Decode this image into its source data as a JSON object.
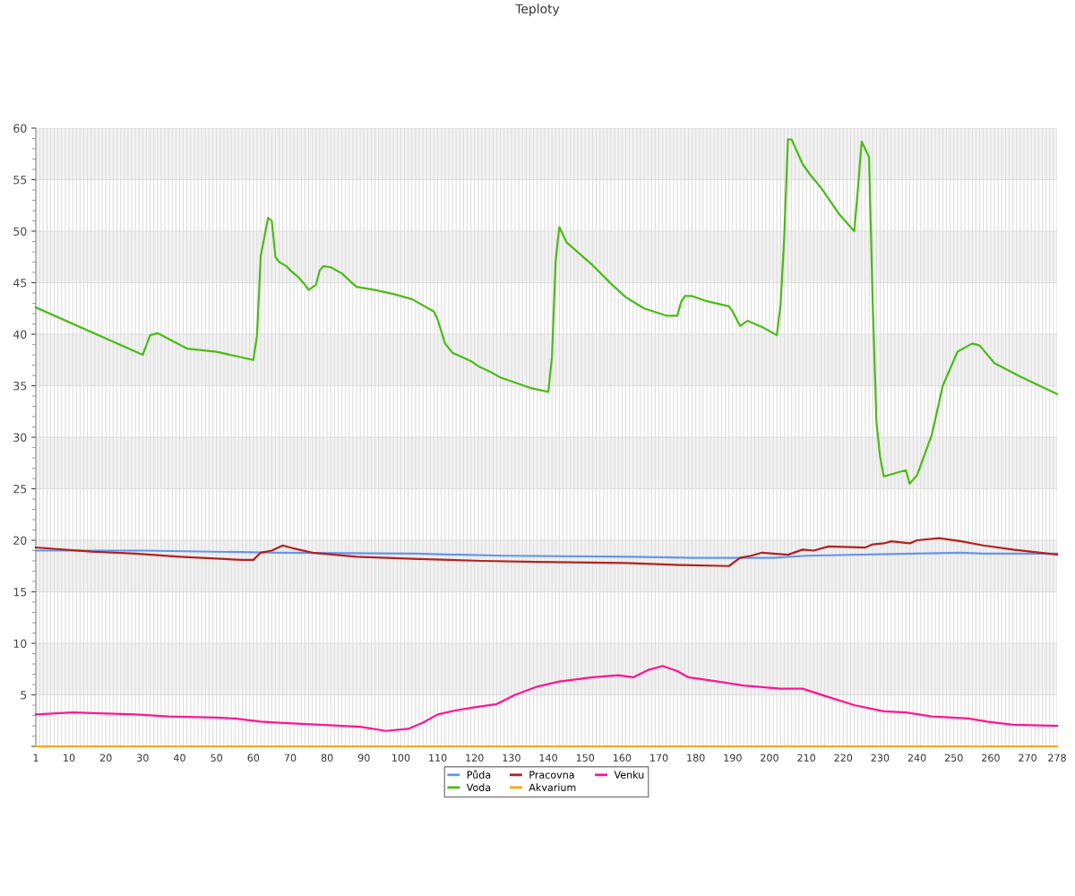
{
  "chart_data": {
    "type": "line",
    "title": "Teploty",
    "xlim": [
      1,
      278
    ],
    "xticks": [
      1,
      {
        "value": 2,
        "label": null
      },
      {
        "value": 3,
        "label": null
      },
      {
        "value": 4,
        "label": null
      },
      {
        "value": 5,
        "label": null
      },
      {
        "value": 6,
        "label": null
      },
      {
        "value": 7,
        "label": null
      },
      {
        "value": 8,
        "label": null
      },
      {
        "value": 9,
        "label": null
      },
      10,
      {
        "value": 11,
        "label": null
      },
      {
        "value": 12,
        "label": null
      },
      {
        "value": 13,
        "label": null
      },
      {
        "value": 14,
        "label": null
      },
      {
        "value": 15,
        "label": null
      },
      {
        "value": 16,
        "label": null
      },
      {
        "value": 17,
        "label": null
      },
      {
        "value": 18,
        "label": null
      },
      {
        "value": 19,
        "label": null
      },
      20,
      {
        "value": 21,
        "label": null
      },
      {
        "value": 22,
        "label": null
      },
      {
        "value": 23,
        "label": null
      },
      {
        "value": 24,
        "label": null
      },
      {
        "value": 25,
        "label": null
      },
      {
        "value": 26,
        "label": null
      },
      {
        "value": 27,
        "label": null
      },
      {
        "value": 28,
        "label": null
      },
      {
        "value": 29,
        "label": null
      },
      30,
      {
        "value": 31,
        "label": null
      },
      {
        "value": 32,
        "label": null
      },
      {
        "value": 33,
        "label": null
      },
      {
        "value": 34,
        "label": null
      },
      {
        "value": 35,
        "label": null
      },
      {
        "value": 36,
        "label": null
      },
      {
        "value": 37,
        "label": null
      },
      {
        "value": 38,
        "label": null
      },
      {
        "value": 39,
        "label": null
      },
      40,
      {
        "value": 41,
        "label": null
      },
      {
        "value": 42,
        "label": null
      },
      {
        "value": 43,
        "label": null
      },
      {
        "value": 44,
        "label": null
      },
      {
        "value": 45,
        "label": null
      },
      {
        "value": 46,
        "label": null
      },
      {
        "value": 47,
        "label": null
      },
      {
        "value": 48,
        "label": null
      },
      {
        "value": 49,
        "label": null
      },
      50,
      {
        "value": 51,
        "label": null
      },
      {
        "value": 52,
        "label": null
      },
      {
        "value": 53,
        "label": null
      },
      {
        "value": 54,
        "label": null
      },
      {
        "value": 55,
        "label": null
      },
      {
        "value": 56,
        "label": null
      },
      {
        "value": 57,
        "label": null
      },
      {
        "value": 58,
        "label": null
      },
      {
        "value": 59,
        "label": null
      },
      60,
      {
        "value": 61,
        "label": null
      },
      {
        "value": 62,
        "label": null
      },
      {
        "value": 63,
        "label": null
      },
      {
        "value": 64,
        "label": null
      },
      {
        "value": 65,
        "label": null
      },
      {
        "value": 66,
        "label": null
      },
      {
        "value": 67,
        "label": null
      },
      {
        "value": 68,
        "label": null
      },
      {
        "value": 69,
        "label": null
      },
      70,
      {
        "value": 71,
        "label": null
      },
      {
        "value": 72,
        "label": null
      },
      {
        "value": 73,
        "label": null
      },
      {
        "value": 74,
        "label": null
      },
      {
        "value": 75,
        "label": null
      },
      {
        "value": 76,
        "label": null
      },
      {
        "value": 77,
        "label": null
      },
      {
        "value": 78,
        "label": null
      },
      {
        "value": 79,
        "label": null
      },
      80,
      {
        "value": 81,
        "label": null
      },
      {
        "value": 82,
        "label": null
      },
      {
        "value": 83,
        "label": null
      },
      {
        "value": 84,
        "label": null
      },
      {
        "value": 85,
        "label": null
      },
      {
        "value": 86,
        "label": null
      },
      {
        "value": 87,
        "label": null
      },
      {
        "value": 88,
        "label": null
      },
      {
        "value": 89,
        "label": null
      },
      90,
      {
        "value": 91,
        "label": null
      },
      {
        "value": 92,
        "label": null
      },
      {
        "value": 93,
        "label": null
      },
      {
        "value": 94,
        "label": null
      },
      {
        "value": 95,
        "label": null
      },
      {
        "value": 96,
        "label": null
      },
      {
        "value": 97,
        "label": null
      },
      {
        "value": 98,
        "label": null
      },
      {
        "value": 99,
        "label": null
      },
      100,
      {
        "value": 101,
        "label": null
      },
      {
        "value": 102,
        "label": null
      },
      {
        "value": 103,
        "label": null
      },
      {
        "value": 104,
        "label": null
      },
      {
        "value": 105,
        "label": null
      },
      {
        "value": 106,
        "label": null
      },
      {
        "value": 107,
        "label": null
      },
      {
        "value": 108,
        "label": null
      },
      {
        "value": 109,
        "label": null
      },
      110,
      {
        "value": 111,
        "label": null
      },
      {
        "value": 112,
        "label": null
      },
      {
        "value": 113,
        "label": null
      },
      {
        "value": 114,
        "label": null
      },
      {
        "value": 115,
        "label": null
      },
      {
        "value": 116,
        "label": null
      },
      {
        "value": 117,
        "label": null
      },
      {
        "value": 118,
        "label": null
      },
      {
        "value": 119,
        "label": null
      },
      120,
      {
        "value": 121,
        "label": null
      },
      {
        "value": 122,
        "label": null
      },
      {
        "value": 123,
        "label": null
      },
      {
        "value": 124,
        "label": null
      },
      {
        "value": 125,
        "label": null
      },
      {
        "value": 126,
        "label": null
      },
      {
        "value": 127,
        "label": null
      },
      {
        "value": 128,
        "label": null
      },
      {
        "value": 129,
        "label": null
      },
      130,
      {
        "value": 131,
        "label": null
      },
      {
        "value": 132,
        "label": null
      },
      {
        "value": 133,
        "label": null
      },
      {
        "value": 134,
        "label": null
      },
      {
        "value": 135,
        "label": null
      },
      {
        "value": 136,
        "label": null
      },
      {
        "value": 137,
        "label": null
      },
      {
        "value": 138,
        "label": null
      },
      {
        "value": 139,
        "label": null
      },
      140,
      {
        "value": 141,
        "label": null
      },
      {
        "value": 142,
        "label": null
      },
      {
        "value": 143,
        "label": null
      },
      {
        "value": 144,
        "label": null
      },
      {
        "value": 145,
        "label": null
      },
      {
        "value": 146,
        "label": null
      },
      {
        "value": 147,
        "label": null
      },
      {
        "value": 148,
        "label": null
      },
      {
        "value": 149,
        "label": null
      },
      150,
      {
        "value": 151,
        "label": null
      },
      {
        "value": 152,
        "label": null
      },
      {
        "value": 153,
        "label": null
      },
      {
        "value": 154,
        "label": null
      },
      {
        "value": 155,
        "label": null
      },
      {
        "value": 156,
        "label": null
      },
      {
        "value": 157,
        "label": null
      },
      {
        "value": 158,
        "label": null
      },
      {
        "value": 159,
        "label": null
      },
      160,
      {
        "value": 161,
        "label": null
      },
      {
        "value": 162,
        "label": null
      },
      {
        "value": 163,
        "label": null
      },
      {
        "value": 164,
        "label": null
      },
      {
        "value": 165,
        "label": null
      },
      {
        "value": 166,
        "label": null
      },
      {
        "value": 167,
        "label": null
      },
      {
        "value": 168,
        "label": null
      },
      {
        "value": 169,
        "label": null
      },
      170,
      {
        "value": 171,
        "label": null
      },
      {
        "value": 172,
        "label": null
      },
      {
        "value": 173,
        "label": null
      },
      {
        "value": 174,
        "label": null
      },
      {
        "value": 175,
        "label": null
      },
      {
        "value": 176,
        "label": null
      },
      {
        "value": 177,
        "label": null
      },
      {
        "value": 178,
        "label": null
      },
      {
        "value": 179,
        "label": null
      },
      180,
      {
        "value": 181,
        "label": null
      },
      {
        "value": 182,
        "label": null
      },
      {
        "value": 183,
        "label": null
      },
      {
        "value": 184,
        "label": null
      },
      {
        "value": 185,
        "label": null
      },
      {
        "value": 186,
        "label": null
      },
      {
        "value": 187,
        "label": null
      },
      {
        "value": 188,
        "label": null
      },
      {
        "value": 189,
        "label": null
      },
      190,
      {
        "value": 191,
        "label": null
      },
      {
        "value": 192,
        "label": null
      },
      {
        "value": 193,
        "label": null
      },
      {
        "value": 194,
        "label": null
      },
      {
        "value": 195,
        "label": null
      },
      {
        "value": 196,
        "label": null
      },
      {
        "value": 197,
        "label": null
      },
      {
        "value": 198,
        "label": null
      },
      {
        "value": 199,
        "label": null
      },
      200,
      {
        "value": 201,
        "label": null
      },
      {
        "value": 202,
        "label": null
      },
      {
        "value": 203,
        "label": null
      },
      {
        "value": 204,
        "label": null
      },
      {
        "value": 205,
        "label": null
      },
      {
        "value": 206,
        "label": null
      },
      {
        "value": 207,
        "label": null
      },
      {
        "value": 208,
        "label": null
      },
      {
        "value": 209,
        "label": null
      },
      210,
      {
        "value": 211,
        "label": null
      },
      {
        "value": 212,
        "label": null
      },
      {
        "value": 213,
        "label": null
      },
      {
        "value": 214,
        "label": null
      },
      {
        "value": 215,
        "label": null
      },
      {
        "value": 216,
        "label": null
      },
      {
        "value": 217,
        "label": null
      },
      {
        "value": 218,
        "label": null
      },
      {
        "value": 219,
        "label": null
      },
      220,
      {
        "value": 221,
        "label": null
      },
      {
        "value": 222,
        "label": null
      },
      {
        "value": 223,
        "label": null
      },
      {
        "value": 224,
        "label": null
      },
      {
        "value": 225,
        "label": null
      },
      {
        "value": 226,
        "label": null
      },
      {
        "value": 227,
        "label": null
      },
      {
        "value": 228,
        "label": null
      },
      {
        "value": 229,
        "label": null
      },
      230,
      {
        "value": 231,
        "label": null
      },
      {
        "value": 232,
        "label": null
      },
      {
        "value": 233,
        "label": null
      },
      {
        "value": 234,
        "label": null
      },
      {
        "value": 235,
        "label": null
      },
      {
        "value": 236,
        "label": null
      },
      {
        "value": 237,
        "label": null
      },
      {
        "value": 238,
        "label": null
      },
      {
        "value": 239,
        "label": null
      },
      240,
      {
        "value": 241,
        "label": null
      },
      {
        "value": 242,
        "label": null
      },
      {
        "value": 243,
        "label": null
      },
      {
        "value": 244,
        "label": null
      },
      {
        "value": 245,
        "label": null
      },
      {
        "value": 246,
        "label": null
      },
      {
        "value": 247,
        "label": null
      },
      {
        "value": 248,
        "label": null
      },
      {
        "value": 249,
        "label": null
      },
      250,
      {
        "value": 251,
        "label": null
      },
      {
        "value": 252,
        "label": null
      },
      {
        "value": 253,
        "label": null
      },
      {
        "value": 254,
        "label": null
      },
      {
        "value": 255,
        "label": null
      },
      {
        "value": 256,
        "label": null
      },
      {
        "value": 257,
        "label": null
      },
      {
        "value": 258,
        "label": null
      },
      {
        "value": 259,
        "label": null
      },
      260,
      {
        "value": 261,
        "label": null
      },
      {
        "value": 262,
        "label": null
      },
      {
        "value": 263,
        "label": null
      },
      {
        "value": 264,
        "label": null
      },
      {
        "value": 265,
        "label": null
      },
      {
        "value": 266,
        "label": null
      },
      {
        "value": 267,
        "label": null
      },
      {
        "value": 268,
        "label": null
      },
      {
        "value": 269,
        "label": null
      },
      270,
      {
        "value": 271,
        "label": null
      },
      {
        "value": 272,
        "label": null
      },
      {
        "value": 273,
        "label": null
      },
      {
        "value": 274,
        "label": null
      },
      {
        "value": 275,
        "label": null
      },
      {
        "value": 276,
        "label": null
      },
      {
        "value": 277,
        "label": null
      },
      278
    ],
    "ylim": [
      0,
      60
    ],
    "yticks": [
      {
        "value": 0,
        "label": null
      },
      5,
      10,
      15,
      20,
      25,
      30,
      35,
      40,
      45,
      50,
      55,
      60
    ],
    "grid": true,
    "legend": "bottom",
    "marker": "none",
    "line_style": "solid",
    "bands": [
      {
        "axis": "y",
        "from": 5,
        "to": 10,
        "color": "#f2f2f2"
      },
      {
        "axis": "y",
        "from": 15,
        "to": 20,
        "color": "#f2f2f2"
      },
      {
        "axis": "y",
        "from": 25,
        "to": 30,
        "color": "#f2f2f2"
      },
      {
        "axis": "y",
        "from": 35,
        "to": 40,
        "color": "#f2f2f2"
      },
      {
        "axis": "y",
        "from": 45,
        "to": 50,
        "color": "#f2f2f2"
      },
      {
        "axis": "y",
        "from": 55,
        "to": 60,
        "color": "#f2f2f2"
      }
    ],
    "series": [
      {
        "name": "Půda",
        "color": "#6495ed",
        "x": [
          1,
          30,
          66,
          104,
          128,
          162,
          179,
          201,
          210,
          239,
          252,
          258,
          278
        ],
        "values": [
          19.0,
          19.0,
          18.8,
          18.7,
          18.5,
          18.4,
          18.3,
          18.3,
          18.5,
          18.7,
          18.8,
          18.7,
          18.7
        ]
      },
      {
        "name": "Voda",
        "color": "#4cbb17",
        "x": [
          1,
          30,
          32,
          34,
          42,
          50,
          60,
          61,
          62,
          64,
          65,
          66,
          67,
          69,
          70,
          72,
          74,
          75,
          77,
          78,
          79,
          81,
          84,
          87,
          88,
          93,
          98,
          103,
          109,
          110,
          112,
          114,
          119,
          121,
          124,
          127,
          135,
          140,
          141,
          142,
          143,
          145,
          152,
          157,
          161,
          166,
          172,
          175,
          176,
          177,
          179,
          183,
          189,
          190,
          192,
          194,
          198,
          202,
          203,
          204,
          205,
          206,
          209,
          211,
          214,
          219,
          223,
          224,
          225,
          227,
          228,
          229,
          230,
          231,
          237,
          238,
          240,
          244,
          247,
          251,
          255,
          257,
          261,
          268,
          278
        ],
        "values": [
          42.6,
          38.0,
          39.9,
          40.1,
          38.6,
          38.3,
          37.5,
          39.9,
          47.6,
          51.3,
          51.0,
          47.5,
          47.0,
          46.6,
          46.2,
          45.6,
          44.8,
          44.3,
          44.8,
          46.2,
          46.6,
          46.5,
          45.9,
          44.9,
          44.6,
          44.3,
          43.9,
          43.4,
          42.2,
          41.4,
          39.1,
          38.2,
          37.4,
          36.9,
          36.4,
          35.8,
          34.8,
          34.4,
          37.8,
          47.2,
          50.4,
          48.9,
          46.7,
          44.9,
          43.6,
          42.5,
          41.8,
          41.8,
          43.1,
          43.7,
          43.7,
          43.2,
          42.7,
          42.2,
          40.8,
          41.3,
          40.7,
          39.9,
          42.9,
          49.4,
          58.9,
          58.9,
          56.5,
          55.5,
          54.2,
          51.6,
          50.0,
          54.2,
          58.7,
          57.2,
          42.9,
          31.5,
          28.1,
          26.2,
          26.8,
          25.5,
          26.3,
          30.2,
          35.0,
          38.3,
          39.1,
          38.9,
          37.2,
          35.9,
          34.2
        ]
      },
      {
        "name": "Pracovna",
        "color": "#b22222",
        "x": [
          1,
          16,
          28,
          40,
          57,
          60,
          62,
          65,
          68,
          71,
          76,
          88,
          103,
          122,
          137,
          161,
          176,
          189,
          192,
          195,
          198,
          205,
          209,
          212,
          216,
          226,
          228,
          231,
          233,
          238,
          240,
          246,
          252,
          258,
          266,
          278
        ],
        "values": [
          19.3,
          18.9,
          18.7,
          18.4,
          18.1,
          18.1,
          18.8,
          19.0,
          19.5,
          19.2,
          18.8,
          18.4,
          18.2,
          18.0,
          17.9,
          17.8,
          17.6,
          17.5,
          18.3,
          18.5,
          18.8,
          18.6,
          19.1,
          19.0,
          19.4,
          19.3,
          19.6,
          19.7,
          19.9,
          19.7,
          20.0,
          20.2,
          19.9,
          19.5,
          19.1,
          18.6
        ]
      },
      {
        "name": "Akvarium",
        "color": "#ffa500",
        "x": [
          1,
          278
        ],
        "values": [
          0,
          0
        ]
      },
      {
        "name": "Venku",
        "color": "#ff1493",
        "x": [
          1,
          11,
          28,
          37,
          50,
          55,
          62,
          67,
          78,
          89,
          96,
          102,
          106,
          110,
          115,
          120,
          126,
          131,
          137,
          143,
          152,
          159,
          163,
          167,
          171,
          175,
          178,
          186,
          193,
          203,
          209,
          215,
          223,
          231,
          237,
          244,
          254,
          259,
          266,
          278
        ],
        "values": [
          3.1,
          3.3,
          3.1,
          2.9,
          2.8,
          2.7,
          2.4,
          2.3,
          2.1,
          1.9,
          1.5,
          1.7,
          2.3,
          3.1,
          3.5,
          3.8,
          4.1,
          5.0,
          5.8,
          6.3,
          6.7,
          6.9,
          6.7,
          7.4,
          7.8,
          7.3,
          6.7,
          6.3,
          5.9,
          5.6,
          5.6,
          4.9,
          4.0,
          3.4,
          3.3,
          2.9,
          2.7,
          2.4,
          2.1,
          2.0
        ]
      }
    ]
  }
}
